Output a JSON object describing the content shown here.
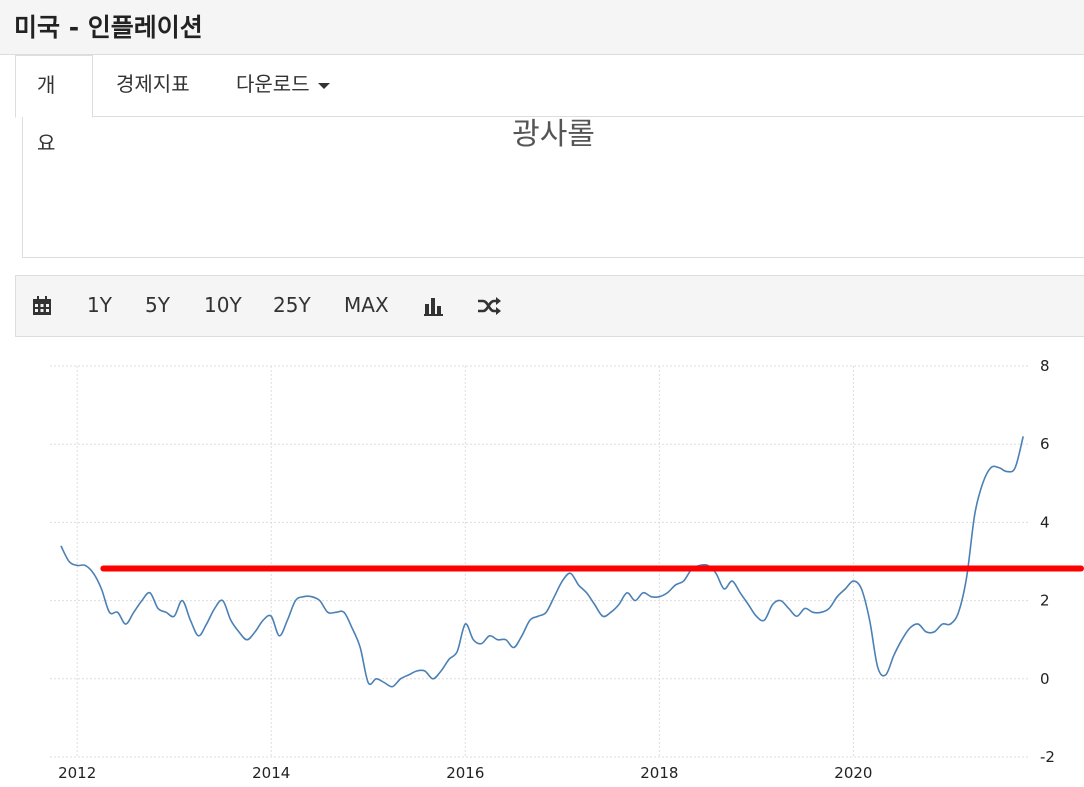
{
  "header": {
    "title": "미국 - 인플레이션"
  },
  "tabs": [
    "개요",
    "경제지표",
    "다운로드"
  ],
  "banner_text": "광사롤",
  "toolbar": {
    "buttons": [
      "1Y",
      "5Y",
      "10Y",
      "25Y",
      "MAX"
    ]
  },
  "chart_data": {
    "type": "line",
    "x": [
      2011.833,
      2011.917,
      2012.0,
      2012.083,
      2012.167,
      2012.25,
      2012.333,
      2012.417,
      2012.5,
      2012.583,
      2012.667,
      2012.75,
      2012.833,
      2012.917,
      2013.0,
      2013.083,
      2013.167,
      2013.25,
      2013.333,
      2013.417,
      2013.5,
      2013.583,
      2013.667,
      2013.75,
      2013.833,
      2013.917,
      2014.0,
      2014.083,
      2014.167,
      2014.25,
      2014.333,
      2014.417,
      2014.5,
      2014.583,
      2014.667,
      2014.75,
      2014.833,
      2014.917,
      2015.0,
      2015.083,
      2015.167,
      2015.25,
      2015.333,
      2015.417,
      2015.5,
      2015.583,
      2015.667,
      2015.75,
      2015.833,
      2015.917,
      2016.0,
      2016.083,
      2016.167,
      2016.25,
      2016.333,
      2016.417,
      2016.5,
      2016.583,
      2016.667,
      2016.75,
      2016.833,
      2016.917,
      2017.0,
      2017.083,
      2017.167,
      2017.25,
      2017.333,
      2017.417,
      2017.5,
      2017.583,
      2017.667,
      2017.75,
      2017.833,
      2017.917,
      2018.0,
      2018.083,
      2018.167,
      2018.25,
      2018.333,
      2018.417,
      2018.5,
      2018.583,
      2018.667,
      2018.75,
      2018.833,
      2018.917,
      2019.0,
      2019.083,
      2019.167,
      2019.25,
      2019.333,
      2019.417,
      2019.5,
      2019.583,
      2019.667,
      2019.75,
      2019.833,
      2019.917,
      2020.0,
      2020.083,
      2020.167,
      2020.25,
      2020.333,
      2020.417,
      2020.5,
      2020.583,
      2020.667,
      2020.75,
      2020.833,
      2020.917,
      2021.0,
      2021.083,
      2021.167,
      2021.25,
      2021.333,
      2021.417,
      2021.5,
      2021.583,
      2021.667,
      2021.75
    ],
    "series": [
      {
        "color": "#4a80b5",
        "values": [
          3.4,
          3.0,
          2.9,
          2.9,
          2.7,
          2.3,
          1.7,
          1.7,
          1.4,
          1.7,
          2.0,
          2.2,
          1.8,
          1.7,
          1.6,
          2.0,
          1.5,
          1.1,
          1.4,
          1.8,
          2.0,
          1.5,
          1.2,
          1.0,
          1.2,
          1.5,
          1.6,
          1.1,
          1.5,
          2.0,
          2.1,
          2.1,
          2.0,
          1.7,
          1.7,
          1.7,
          1.3,
          0.8,
          -0.1,
          0.0,
          -0.1,
          -0.2,
          0.0,
          0.1,
          0.2,
          0.2,
          0.0,
          0.2,
          0.5,
          0.7,
          1.4,
          1.0,
          0.9,
          1.1,
          1.0,
          1.0,
          0.8,
          1.1,
          1.5,
          1.6,
          1.7,
          2.1,
          2.5,
          2.7,
          2.4,
          2.2,
          1.9,
          1.6,
          1.7,
          1.9,
          2.2,
          2.0,
          2.2,
          2.1,
          2.1,
          2.2,
          2.4,
          2.5,
          2.8,
          2.9,
          2.9,
          2.7,
          2.3,
          2.5,
          2.2,
          1.9,
          1.6,
          1.5,
          1.9,
          2.0,
          1.8,
          1.6,
          1.8,
          1.7,
          1.7,
          1.8,
          2.1,
          2.3,
          2.5,
          2.3,
          1.5,
          0.3,
          0.1,
          0.6,
          1.0,
          1.3,
          1.4,
          1.2,
          1.2,
          1.4,
          1.4,
          1.7,
          2.6,
          4.2,
          5.0,
          5.4,
          5.4,
          5.3,
          5.4,
          6.2
        ]
      }
    ],
    "reference_line": {
      "value": 2.82,
      "x_start": 2012.27,
      "color": "#ff0000"
    },
    "xlim": [
      2011.72,
      2021.82
    ],
    "xticks": [
      2012,
      2014,
      2016,
      2018,
      2020
    ],
    "ylim": [
      -2,
      8
    ],
    "yticks": [
      -2,
      0,
      2,
      4,
      6,
      8
    ],
    "grid": true
  }
}
